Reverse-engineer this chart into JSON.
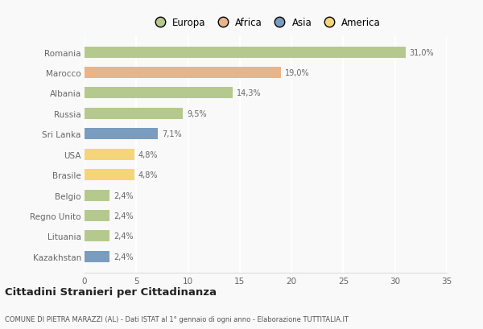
{
  "countries": [
    "Romania",
    "Marocco",
    "Albania",
    "Russia",
    "Sri Lanka",
    "USA",
    "Brasile",
    "Belgio",
    "Regno Unito",
    "Lituania",
    "Kazakhstan"
  ],
  "values": [
    31.0,
    19.0,
    14.3,
    9.5,
    7.1,
    4.8,
    4.8,
    2.4,
    2.4,
    2.4,
    2.4
  ],
  "labels": [
    "31,0%",
    "19,0%",
    "14,3%",
    "9,5%",
    "7,1%",
    "4,8%",
    "4,8%",
    "2,4%",
    "2,4%",
    "2,4%",
    "2,4%"
  ],
  "colors": [
    "#b5c98e",
    "#e8b48a",
    "#b5c98e",
    "#b5c98e",
    "#7a9cbf",
    "#f5d57a",
    "#f5d57a",
    "#b5c98e",
    "#b5c98e",
    "#b5c98e",
    "#7a9cbf"
  ],
  "legend_labels": [
    "Europa",
    "Africa",
    "Asia",
    "America"
  ],
  "legend_colors": [
    "#b5c98e",
    "#e8b48a",
    "#7a9cbf",
    "#f5d57a"
  ],
  "title": "Cittadini Stranieri per Cittadinanza",
  "subtitle": "COMUNE DI PIETRA MARAZZI (AL) - Dati ISTAT al 1° gennaio di ogni anno - Elaborazione TUTTITALIA.IT",
  "xlim": [
    0,
    35
  ],
  "xticks": [
    0,
    5,
    10,
    15,
    20,
    25,
    30,
    35
  ],
  "background_color": "#f9f9f9",
  "grid_color": "#ffffff",
  "bar_height": 0.55
}
